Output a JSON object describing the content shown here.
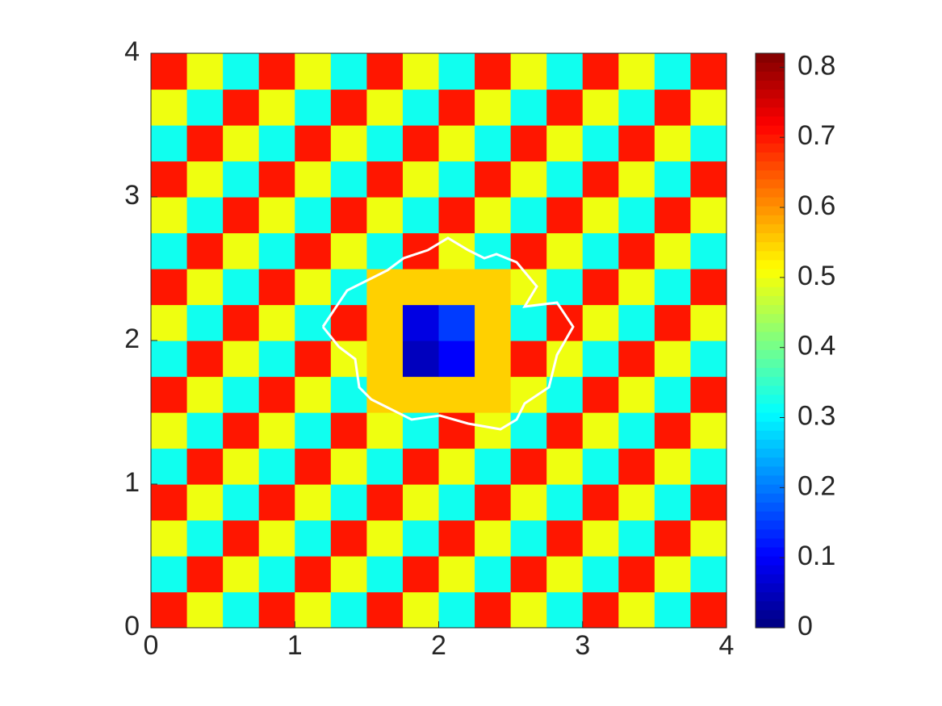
{
  "chart_data": {
    "type": "heatmap",
    "xlim": [
      0,
      4
    ],
    "ylim": [
      0,
      4
    ],
    "xticks": [
      0,
      1,
      2,
      3,
      4
    ],
    "yticks": [
      0,
      1,
      2,
      3,
      4
    ],
    "clim": [
      0,
      0.82
    ],
    "cticks": [
      0,
      0.1,
      0.2,
      0.3,
      0.4,
      0.5,
      0.6,
      0.7,
      0.8
    ],
    "colormap": "jet",
    "z": [
      [
        0.7,
        0.5,
        0.32,
        0.7,
        0.5,
        0.32,
        0.7,
        0.5,
        0.32,
        0.7,
        0.5,
        0.32,
        0.7,
        0.5,
        0.32,
        0.7
      ],
      [
        0.32,
        0.7,
        0.5,
        0.32,
        0.7,
        0.5,
        0.32,
        0.7,
        0.5,
        0.32,
        0.7,
        0.5,
        0.32,
        0.7,
        0.5,
        0.32
      ],
      [
        0.5,
        0.32,
        0.7,
        0.5,
        0.32,
        0.7,
        0.5,
        0.32,
        0.7,
        0.5,
        0.32,
        0.7,
        0.5,
        0.32,
        0.7,
        0.5
      ],
      [
        0.7,
        0.5,
        0.32,
        0.7,
        0.5,
        0.32,
        0.7,
        0.5,
        0.32,
        0.7,
        0.5,
        0.32,
        0.7,
        0.5,
        0.32,
        0.7
      ],
      [
        0.32,
        0.7,
        0.5,
        0.32,
        0.7,
        0.5,
        0.32,
        0.7,
        0.5,
        0.32,
        0.7,
        0.5,
        0.32,
        0.7,
        0.5,
        0.32
      ],
      [
        0.5,
        0.32,
        0.7,
        0.5,
        0.32,
        0.7,
        0.5,
        0.32,
        0.7,
        0.5,
        0.32,
        0.7,
        0.5,
        0.32,
        0.7,
        0.5
      ],
      [
        0.7,
        0.5,
        0.32,
        0.7,
        0.5,
        0.32,
        0.55,
        0.55,
        0.55,
        0.55,
        0.5,
        0.32,
        0.7,
        0.5,
        0.32,
        0.7
      ],
      [
        0.32,
        0.7,
        0.5,
        0.32,
        0.7,
        0.5,
        0.55,
        0.05,
        0.1,
        0.55,
        0.7,
        0.5,
        0.32,
        0.7,
        0.5,
        0.32
      ],
      [
        0.5,
        0.32,
        0.7,
        0.5,
        0.32,
        0.7,
        0.55,
        0.08,
        0.15,
        0.55,
        0.32,
        0.7,
        0.5,
        0.32,
        0.7,
        0.5
      ],
      [
        0.7,
        0.5,
        0.32,
        0.7,
        0.5,
        0.32,
        0.55,
        0.55,
        0.55,
        0.55,
        0.5,
        0.32,
        0.7,
        0.5,
        0.32,
        0.7
      ],
      [
        0.32,
        0.7,
        0.5,
        0.32,
        0.7,
        0.5,
        0.32,
        0.7,
        0.5,
        0.32,
        0.7,
        0.5,
        0.32,
        0.7,
        0.5,
        0.32
      ],
      [
        0.5,
        0.32,
        0.7,
        0.5,
        0.32,
        0.7,
        0.5,
        0.32,
        0.7,
        0.5,
        0.32,
        0.7,
        0.5,
        0.32,
        0.7,
        0.5
      ],
      [
        0.7,
        0.5,
        0.32,
        0.7,
        0.5,
        0.32,
        0.7,
        0.5,
        0.32,
        0.7,
        0.5,
        0.32,
        0.7,
        0.5,
        0.32,
        0.7
      ],
      [
        0.32,
        0.7,
        0.5,
        0.32,
        0.7,
        0.5,
        0.32,
        0.7,
        0.5,
        0.32,
        0.7,
        0.5,
        0.32,
        0.7,
        0.5,
        0.32
      ],
      [
        0.5,
        0.32,
        0.7,
        0.5,
        0.32,
        0.7,
        0.5,
        0.32,
        0.7,
        0.5,
        0.32,
        0.7,
        0.5,
        0.32,
        0.7,
        0.5
      ],
      [
        0.7,
        0.5,
        0.32,
        0.7,
        0.5,
        0.32,
        0.7,
        0.5,
        0.32,
        0.7,
        0.5,
        0.32,
        0.7,
        0.5,
        0.32,
        0.7
      ]
    ]
  }
}
